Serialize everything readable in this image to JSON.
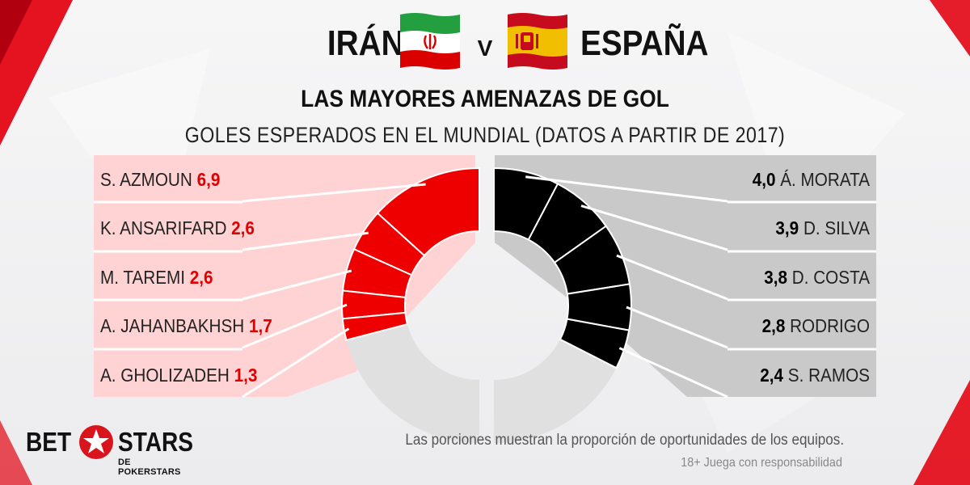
{
  "header": {
    "team_left": "IRÁN",
    "team_right": "ESPAÑA",
    "vs": "V",
    "title": "LAS MAYORES AMENAZAS DE GOL",
    "subtitle": "GOLES ESPERADOS EN EL MUNDIAL (DATOS A PARTIR DE 2017)"
  },
  "footer": {
    "note": "Las porciones muestran la proporción de oportunidades de los equipos.",
    "responsibility": "18+ Juega con responsabilidad",
    "logo_bet": "BET",
    "logo_stars": "STARS",
    "logo_sub": "DE POKERSTARS"
  },
  "colors": {
    "iran": "#ee0000",
    "iran_row": "#ffd3d3",
    "spain": "#000000",
    "spain_row": "#c9c9c9",
    "remainder": "#e0e0e0"
  },
  "chart_data": {
    "type": "pie",
    "measure": "expected goals (xG)",
    "series": [
      {
        "name": "IRÁN",
        "color": "#ee0000",
        "labels": [
          "S. AZMOUN",
          "K. ANSARIFARD",
          "M. TAREMI",
          "A. JAHANBAKHSH",
          "A. GHOLIZADEH"
        ],
        "value_labels": [
          "6,9",
          "2,6",
          "2,6",
          "1,7",
          "1,3"
        ],
        "values": [
          6.9,
          2.6,
          2.6,
          1.7,
          1.3
        ]
      },
      {
        "name": "ESPAÑA",
        "color": "#000000",
        "labels": [
          "Á. MORATA",
          "D. SILVA",
          "D. COSTA",
          "RODRIGO",
          "S. RAMOS"
        ],
        "value_labels": [
          "4,0",
          "3,9",
          "3,8",
          "2,8",
          "2,4"
        ],
        "values": [
          4.0,
          3.9,
          3.8,
          2.8,
          2.4
        ]
      }
    ],
    "half_donut_total": 26
  }
}
